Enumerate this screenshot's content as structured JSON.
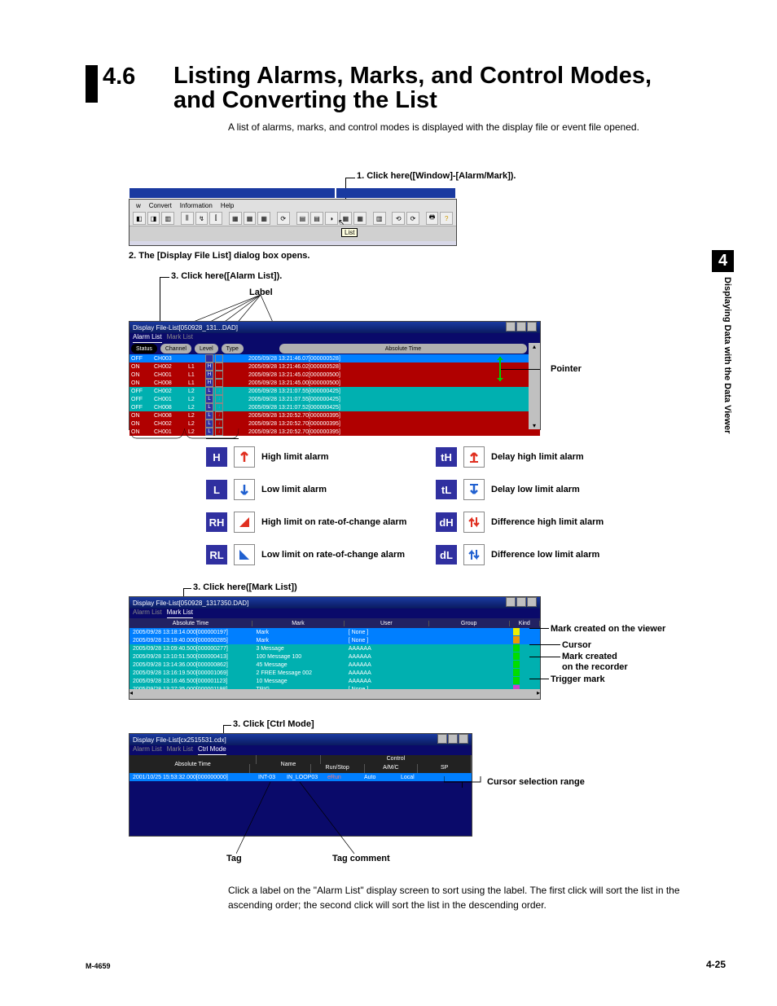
{
  "chapter_tab": "4",
  "side_label": "Displaying Data with the Data Viewer",
  "section_number": "4.6",
  "section_title": "Listing Alarms, Marks, and Control Modes, and Converting the List",
  "intro": "A list of alarms, marks, and control modes is displayed with the display file or event file opened.",
  "call1": "1. Click here([Window]-[Alarm/Mark]).",
  "call2": "2. The [Display File List] dialog box opens.",
  "call3": "3. Click here([Alarm List]).",
  "label_text": "Label",
  "pointer_text": "Pointer",
  "call4": "3. Click here([Mark List])",
  "call5": "3. Click [Ctrl Mode]",
  "tag_text": "Tag",
  "tag_comment_text": "Tag comment",
  "cursor_range_text": "Cursor selection range",
  "body": "Click a label on the \"Alarm List\" display screen to sort using the label.  The first click will sort the list in the ascending order; the second click will sort the list in the descending order.",
  "footer_left": "M-4659",
  "footer_right": "4-25",
  "shot1": {
    "title": "",
    "menus": [
      "w",
      "Convert",
      "Information",
      "Help"
    ],
    "tooltip": "List"
  },
  "shot2": {
    "title": "Display File-List[050928_131...DAD]",
    "tabs": [
      "Alarm List",
      "Mark List"
    ],
    "headers": [
      "Status",
      "Channel",
      "Level",
      "Type",
      "",
      "Absolute Time"
    ],
    "rows": [
      {
        "sel": true,
        "s": "OFF",
        "ch": "CH003",
        "lv": "",
        "ty": "",
        "txt": "2005/09/28 13:21:46.07[000000528]"
      },
      {
        "cls": "on",
        "s": "ON",
        "ch": "CH002",
        "lv": "L1",
        "t1": "H",
        "t2": "↑",
        "txt": "2005/09/28 13:21:46.02[000000528]"
      },
      {
        "cls": "on",
        "s": "ON",
        "ch": "CH001",
        "lv": "L1",
        "t1": "H",
        "t2": "↑",
        "txt": "2005/09/28 13:21:45.02[000000500]"
      },
      {
        "cls": "on",
        "s": "ON",
        "ch": "CH008",
        "lv": "L1",
        "t1": "H",
        "t2": "↑",
        "txt": "2005/09/28 13:21:45.00[000000500]"
      },
      {
        "cls": "off",
        "s": "OFF",
        "ch": "CH002",
        "lv": "L2",
        "t1": "L",
        "t2": "↓",
        "txt": "2005/09/28 13:21:07.55[000000425]"
      },
      {
        "cls": "off",
        "s": "OFF",
        "ch": "CH001",
        "lv": "L2",
        "t1": "L",
        "t2": "↓",
        "txt": "2005/09/28 13:21:07.55[000000425]"
      },
      {
        "cls": "off",
        "s": "OFF",
        "ch": "CH008",
        "lv": "L2",
        "t1": "L",
        "t2": "↓",
        "txt": "2005/09/28 13:21:07.52[000000425]"
      },
      {
        "cls": "on",
        "s": "ON",
        "ch": "CH008",
        "lv": "L2",
        "t1": "L",
        "t2": "↓",
        "txt": "2005/09/28 13:20:52.70[000000395]"
      },
      {
        "cls": "on",
        "s": "ON",
        "ch": "CH002",
        "lv": "L2",
        "t1": "L",
        "t2": "↓",
        "txt": "2005/09/28 13:20:52.70[000000395]"
      },
      {
        "cls": "on",
        "s": "ON",
        "ch": "CH001",
        "lv": "L2",
        "t1": "L",
        "t2": "↓",
        "txt": "2005/09/28 13:20:52.70[000000395]"
      }
    ]
  },
  "legend": [
    {
      "b": "H",
      "ico": "up-red",
      "label": "High limit alarm"
    },
    {
      "b": "L",
      "ico": "down-blue",
      "label": "Low limit alarm"
    },
    {
      "b": "RH",
      "ico": "tri-red",
      "label": "High limit on rate-of-change alarm"
    },
    {
      "b": "RL",
      "ico": "tri-blue",
      "label": "Low limit on rate-of-change alarm"
    },
    {
      "b": "tH",
      "ico": "up-red-t",
      "label": "Delay high limit alarm"
    },
    {
      "b": "tL",
      "ico": "down-blue-t",
      "label": "Delay low limit alarm"
    },
    {
      "b": "dH",
      "ico": "ud-red",
      "label": "Difference high limit alarm"
    },
    {
      "b": "dL",
      "ico": "ud-blue",
      "label": "Difference low limit alarm"
    }
  ],
  "shot3": {
    "title": "Display File-List[050928_1317350.DAD]",
    "tabs": [
      "Alarm List",
      "Mark List"
    ],
    "headers": [
      "Absolute Time",
      "",
      "Mark",
      "",
      "User",
      "",
      "Group",
      "",
      "Kind"
    ],
    "rows": [
      {
        "cls": "sel",
        "t": "2005/09/28 13:18:14.000[000000197]",
        "m": "Mark",
        "u": "[ None ]",
        "g": "",
        "f": "y"
      },
      {
        "cls": "sel",
        "t": "2005/09/28 13:19:40.000[000000285]",
        "m": "Mark",
        "u": "[ None ]",
        "g": "",
        "f": "o"
      },
      {
        "cls": "cyan",
        "t": "2005/09/28 13:09:40.500[000000277]",
        "m": "3 Message",
        "u": "AAAAAA",
        "g": "",
        "f": "g"
      },
      {
        "cls": "cyan",
        "t": "2005/09/28 13:10:51.500[000000413]",
        "m": "100 Message 100",
        "u": "AAAAAA",
        "g": "",
        "f": "g"
      },
      {
        "cls": "cyan",
        "t": "2005/09/28 13:14:36.000[000000862]",
        "m": "45 Message",
        "u": "AAAAAA",
        "g": "",
        "f": "g"
      },
      {
        "cls": "cyan",
        "t": "2005/09/28 13:16:19.500[000001069]",
        "m": "2 FREE Message 002",
        "u": "AAAAAA",
        "g": "",
        "f": "g"
      },
      {
        "cls": "cyan",
        "t": "2005/09/28 13:16:46.500[000001123]",
        "m": "10 Message",
        "u": "AAAAAA",
        "g": "",
        "f": "g"
      },
      {
        "cls": "cyan",
        "t": "2005/09/28 13:27:35.000[000001198]",
        "m": "TRIG",
        "u": "[ None ]",
        "g": "",
        "f": "p"
      }
    ],
    "annot": {
      "a1": "Mark created on the viewer",
      "a2": "Cursor",
      "a3": "Mark created",
      "a3b": "on the recorder",
      "a4": "Trigger mark"
    }
  },
  "shot4": {
    "title": "Display File-List[cx2515531.cdx]",
    "tabs": [
      "Alarm List",
      "Mark List",
      "Ctrl Mode"
    ],
    "hdr_top": [
      "Absolute Time",
      "Name",
      "Control"
    ],
    "hdr_sub": [
      "Run/Stop",
      "A/M/C",
      "SP"
    ],
    "row": {
      "t": "2001/10/25 15:53:32.000[000000000]",
      "n": "INT-03",
      "r": "IN_LOOP03",
      "rs": "eRun",
      "am": "Auto",
      "sp": "Local"
    }
  }
}
